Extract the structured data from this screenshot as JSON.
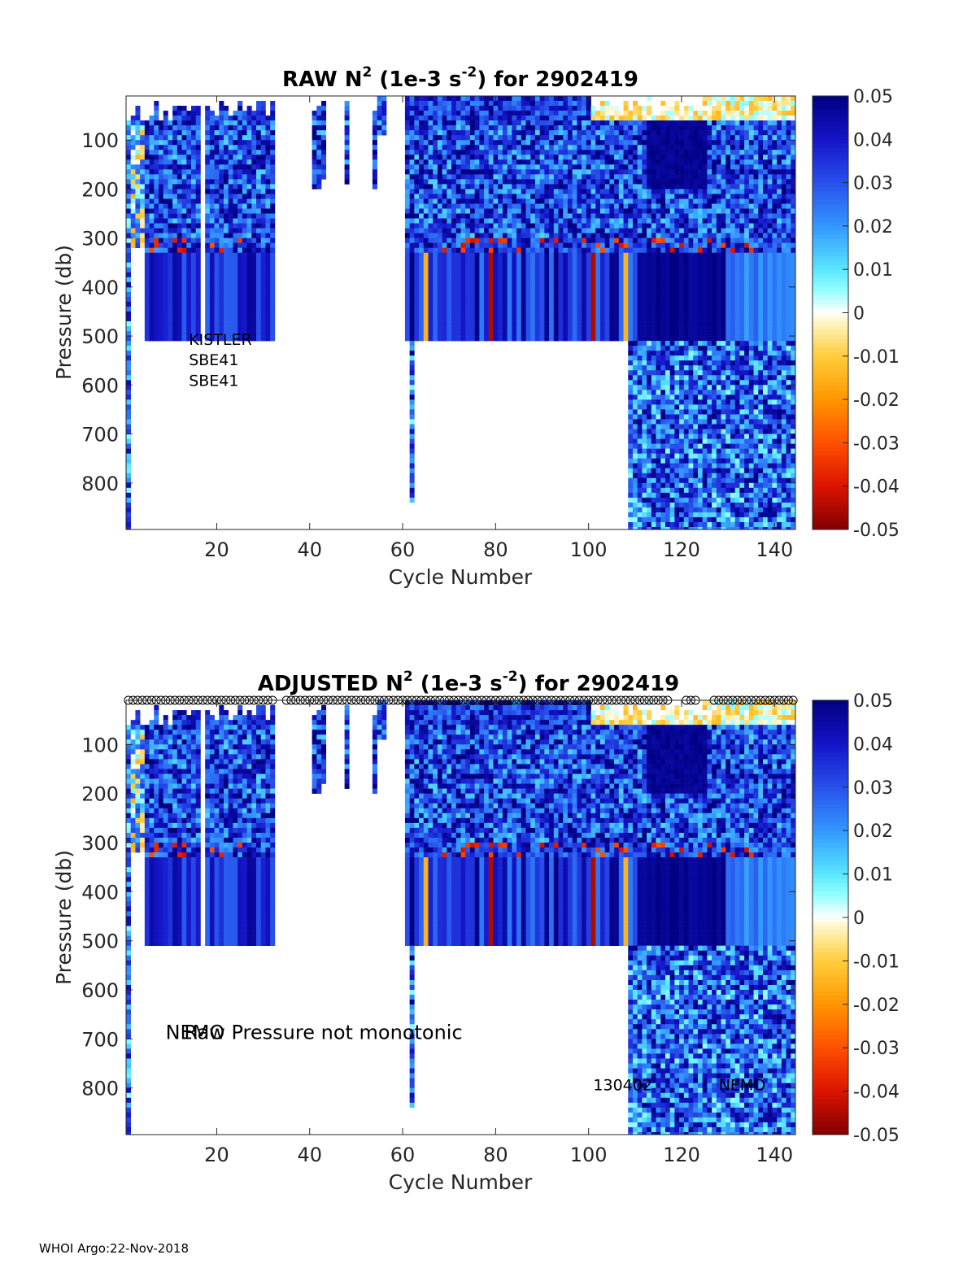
{
  "footer": "WHOI Argo:22-Nov-2018",
  "chart_data": [
    {
      "type": "heatmap",
      "title_prefix": "RAW N",
      "title_sup1": "2",
      "title_mid": " (1e-3 s",
      "title_sup2": "-2",
      "title_suffix": ") for 2902419",
      "xlabel": "Cycle Number",
      "ylabel": "Pressure (db)",
      "xlim": [
        1,
        144
      ],
      "ylim": [
        895,
        10
      ],
      "x_ticks": [
        "20",
        "40",
        "60",
        "80",
        "100",
        "120",
        "140"
      ],
      "x_tick_values": [
        20,
        40,
        60,
        80,
        100,
        120,
        140
      ],
      "y_ticks": [
        "100",
        "200",
        "300",
        "400",
        "500",
        "600",
        "700",
        "800"
      ],
      "y_tick_values": [
        100,
        200,
        300,
        400,
        500,
        600,
        700,
        800
      ],
      "colorbar": {
        "range": [
          -0.05,
          0.05
        ],
        "tick_labels": [
          "0.05",
          "0.04",
          "0.03",
          "0.02",
          "0.01",
          "0",
          "-0.01",
          "-0.02",
          "-0.03",
          "-0.04",
          "-0.05"
        ],
        "tick_values": [
          0.05,
          0.04,
          0.03,
          0.02,
          0.01,
          0,
          -0.01,
          -0.02,
          -0.03,
          -0.04,
          -0.05
        ]
      },
      "annotations": [
        {
          "text": "KISTLER",
          "x": 14,
          "p": 518
        },
        {
          "text": "SBE41",
          "x": 14,
          "p": 560
        },
        {
          "text": "SBE41",
          "x": 14,
          "p": 602
        }
      ],
      "qc_markers": false
    },
    {
      "type": "heatmap",
      "title_prefix": "ADJUSTED N",
      "title_sup1": "2",
      "title_mid": " (1e-3 s",
      "title_sup2": "-2",
      "title_suffix": ") for 2902419",
      "xlabel": "Cycle Number",
      "ylabel": "Pressure (db)",
      "xlim": [
        1,
        144
      ],
      "ylim": [
        895,
        10
      ],
      "x_ticks": [
        "20",
        "40",
        "60",
        "80",
        "100",
        "120",
        "140"
      ],
      "x_tick_values": [
        20,
        40,
        60,
        80,
        100,
        120,
        140
      ],
      "y_ticks": [
        "100",
        "200",
        "300",
        "400",
        "500",
        "600",
        "700",
        "800"
      ],
      "y_tick_values": [
        100,
        200,
        300,
        400,
        500,
        600,
        700,
        800
      ],
      "colorbar": {
        "range": [
          -0.05,
          0.05
        ],
        "tick_labels": [
          "0.05",
          "0.04",
          "0.03",
          "0.02",
          "0.01",
          "0",
          "-0.01",
          "-0.02",
          "-0.03",
          "-0.04",
          "-0.05"
        ],
        "tick_values": [
          0.05,
          0.04,
          0.03,
          0.02,
          0.01,
          0,
          -0.01,
          -0.02,
          -0.03,
          -0.04,
          -0.05
        ]
      },
      "annotations": [
        {
          "text": "NEMO",
          "x": 9,
          "p": 700,
          "size": "large"
        },
        {
          "text": "Raw Pressure not monotonic",
          "x": 13,
          "p": 700,
          "size": "large"
        },
        {
          "text": "130402",
          "x": 101,
          "p": 805
        },
        {
          "text": "NEMO",
          "x": 128,
          "p": 805
        }
      ],
      "qc_markers": true
    }
  ]
}
